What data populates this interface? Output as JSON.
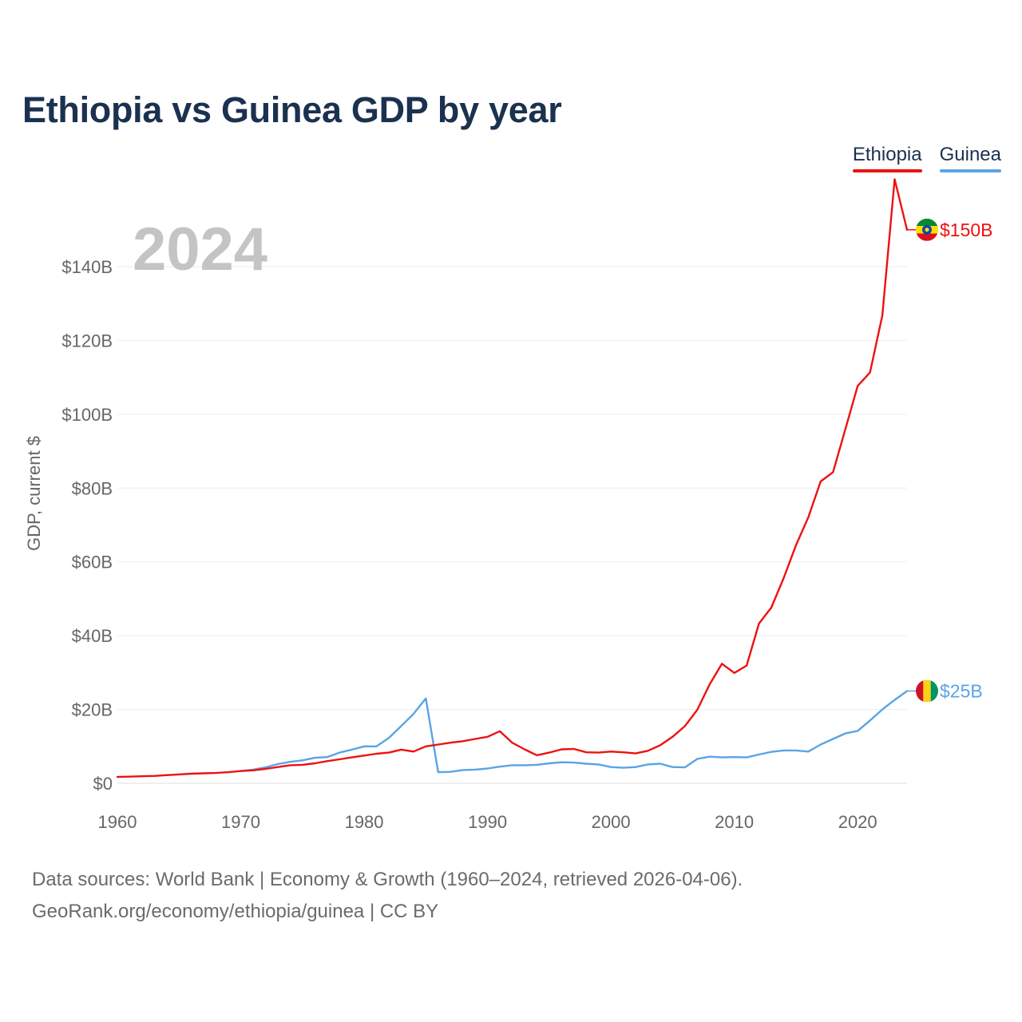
{
  "title": "Ethiopia vs Guinea GDP by year",
  "legend": [
    {
      "label": "Ethiopia",
      "color": "#ee1111"
    },
    {
      "label": "Guinea",
      "color": "#5aa4e4"
    }
  ],
  "footer": {
    "line1": "Data sources: World Bank | Economy & Growth (1960–2024, retrieved 2026-04-06).",
    "line2": "GeoRank.org/economy/ethiopia/guinea | CC BY"
  },
  "chart_data": {
    "type": "line",
    "title": "Ethiopia vs Guinea GDP by year",
    "ylabel": "GDP, current $",
    "xlabel": "",
    "xlim": [
      1960,
      2024
    ],
    "ylim": [
      0,
      150
    ],
    "x_ticks": [
      1960,
      1970,
      1980,
      1990,
      2000,
      2010,
      2020
    ],
    "x_tick_labels": [
      "1960",
      "1970",
      "1980",
      "1990",
      "2000",
      "2010",
      "2020"
    ],
    "y_ticks": [
      0,
      20,
      40,
      60,
      80,
      100,
      120,
      140
    ],
    "y_tick_labels": [
      "$0",
      "$20B",
      "$40B",
      "$60B",
      "$80B",
      "$100B",
      "$120B",
      "$140B"
    ],
    "year_watermark": "2024",
    "grid": true,
    "legend_position": "top-right",
    "series": [
      {
        "name": "Ethiopia",
        "color": "#ee1111",
        "end_label": "$150B",
        "flag": "ethiopia-flag-icon",
        "x": [
          1960,
          1961,
          1962,
          1963,
          1964,
          1965,
          1966,
          1967,
          1968,
          1969,
          1970,
          1971,
          1972,
          1973,
          1974,
          1975,
          1976,
          1977,
          1978,
          1979,
          1980,
          1981,
          1982,
          1983,
          1984,
          1985,
          1986,
          1987,
          1988,
          1989,
          1990,
          1991,
          1992,
          1993,
          1994,
          1995,
          1996,
          1997,
          1998,
          1999,
          2000,
          2001,
          2002,
          2003,
          2004,
          2005,
          2006,
          2007,
          2008,
          2009,
          2010,
          2011,
          2012,
          2013,
          2014,
          2015,
          2016,
          2017,
          2018,
          2019,
          2020,
          2021,
          2022,
          2023,
          2024
        ],
        "values": [
          1.7,
          1.8,
          1.9,
          2.0,
          2.2,
          2.4,
          2.6,
          2.7,
          2.8,
          3.0,
          3.3,
          3.5,
          3.9,
          4.4,
          4.9,
          5.0,
          5.4,
          6.0,
          6.5,
          7.0,
          7.5,
          8.0,
          8.3,
          9.1,
          8.6,
          10.0,
          10.5,
          11.0,
          11.4,
          12.0,
          12.6,
          14.1,
          11.0,
          9.2,
          7.6,
          8.3,
          9.2,
          9.3,
          8.4,
          8.3,
          8.6,
          8.4,
          8.1,
          8.8,
          10.3,
          12.6,
          15.5,
          19.9,
          26.8,
          32.4,
          29.9,
          31.9,
          43.3,
          47.6,
          55.6,
          64.5,
          72.1,
          81.8,
          84.3,
          95.9,
          107.7,
          111.3,
          126.8,
          163.7,
          150.0
        ]
      },
      {
        "name": "Guinea",
        "color": "#5aa4e4",
        "end_label": "$25B",
        "flag": "guinea-flag-icon",
        "x": [
          1970,
          1971,
          1972,
          1973,
          1974,
          1975,
          1976,
          1977,
          1978,
          1979,
          1980,
          1981,
          1982,
          1983,
          1984,
          1985,
          1986,
          1987,
          1988,
          1989,
          1990,
          1991,
          1992,
          1993,
          1994,
          1995,
          1996,
          1997,
          1998,
          1999,
          2000,
          2001,
          2002,
          2003,
          2004,
          2005,
          2006,
          2007,
          2008,
          2009,
          2010,
          2011,
          2012,
          2013,
          2014,
          2015,
          2016,
          2017,
          2018,
          2019,
          2020,
          2021,
          2022,
          2023,
          2024
        ],
        "values": [
          3.3,
          3.7,
          4.3,
          5.2,
          5.8,
          6.2,
          6.9,
          7.1,
          8.3,
          9.1,
          10.0,
          10.0,
          12.3,
          15.5,
          18.8,
          23.0,
          3.0,
          3.1,
          3.6,
          3.7,
          4.0,
          4.5,
          4.9,
          4.9,
          5.0,
          5.4,
          5.7,
          5.6,
          5.3,
          5.1,
          4.4,
          4.2,
          4.4,
          5.1,
          5.3,
          4.4,
          4.3,
          6.6,
          7.2,
          7.0,
          7.1,
          7.0,
          7.8,
          8.5,
          8.9,
          8.9,
          8.6,
          10.5,
          12.0,
          13.5,
          14.2,
          17.0,
          20.0,
          22.6,
          25.0
        ]
      }
    ]
  }
}
